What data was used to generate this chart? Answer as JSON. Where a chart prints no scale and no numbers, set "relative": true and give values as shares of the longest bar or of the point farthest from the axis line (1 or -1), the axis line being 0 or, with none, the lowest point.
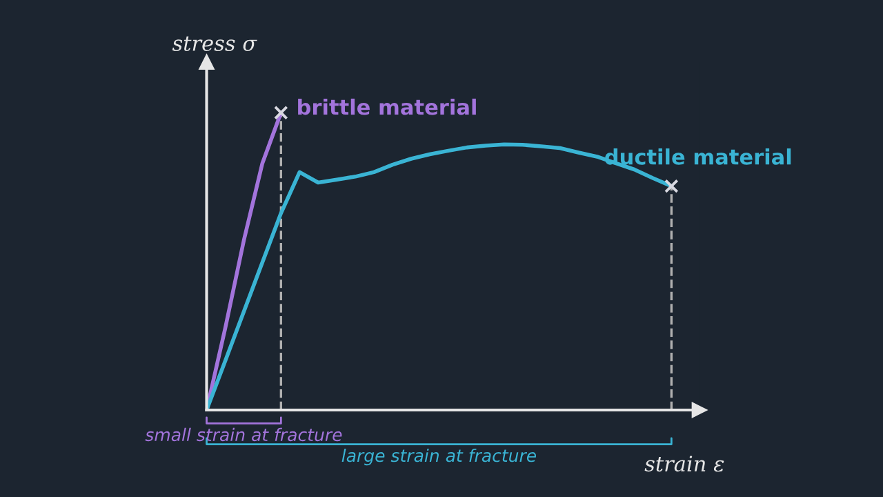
{
  "chart_data": {
    "type": "line",
    "relative": true,
    "xlabel": "strain ε",
    "ylabel": "stress σ",
    "categories": [
      null,
      null,
      null,
      null,
      null,
      null,
      null,
      null,
      null,
      null,
      null,
      null,
      null,
      null,
      null,
      null,
      null,
      null,
      null,
      null,
      null,
      null,
      null,
      null,
      null,
      null
    ],
    "marker": "none",
    "line_style": "solid",
    "legend": false,
    "series": [
      {
        "name": "brittle material",
        "color": "#a374dc",
        "values": [
          0,
          0.275,
          0.57,
          0.83,
          1.0,
          null,
          null,
          null,
          null,
          null,
          null,
          null,
          null,
          null,
          null,
          null,
          null,
          null,
          null,
          null,
          null,
          null,
          null,
          null,
          null,
          null
        ]
      },
      {
        "name": "ductile material",
        "color": "#3ab4d4",
        "values": [
          0,
          0.165,
          0.331,
          0.497,
          0.662,
          0.8,
          0.765,
          0.775,
          0.785,
          0.8,
          0.825,
          0.845,
          0.86,
          0.872,
          0.883,
          0.889,
          0.893,
          0.892,
          0.887,
          0.881,
          0.866,
          0.852,
          0.83,
          0.809,
          0.78,
          0.753
        ]
      }
    ],
    "annotations": [
      "small strain at fracture",
      "large strain at fracture"
    ]
  }
}
